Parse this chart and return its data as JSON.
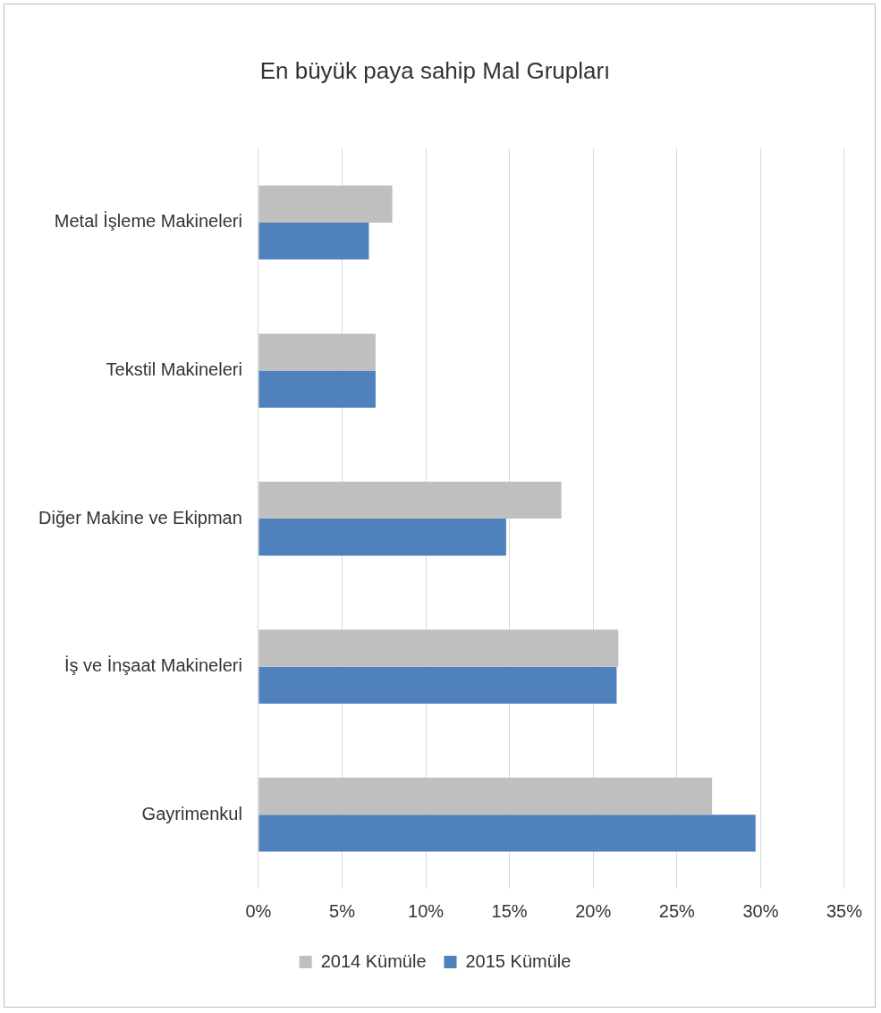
{
  "chart_data": {
    "type": "bar",
    "orientation": "horizontal",
    "title": "En büyük paya sahip Mal Grupları",
    "categories": [
      "Metal İşleme Makineleri",
      "Tekstil Makineleri",
      "Diğer Makine ve Ekipman",
      "İş ve İnşaat Makineleri",
      "Gayrimenkul"
    ],
    "series": [
      {
        "name": "2014 Kümüle",
        "color": "#bfbfbf",
        "values": [
          8.0,
          7.0,
          18.1,
          21.5,
          27.1
        ]
      },
      {
        "name": "2015 Kümüle",
        "color": "#4f81bd",
        "values": [
          6.6,
          7.0,
          14.8,
          21.4,
          29.7
        ]
      }
    ],
    "xlim": [
      0,
      35
    ],
    "xticks": [
      {
        "value": 0,
        "label": "0%"
      },
      {
        "value": 5,
        "label": "5%"
      },
      {
        "value": 10,
        "label": "10%"
      },
      {
        "value": 15,
        "label": "15%"
      },
      {
        "value": 20,
        "label": "20%"
      },
      {
        "value": 25,
        "label": "25%"
      },
      {
        "value": 30,
        "label": "30%"
      },
      {
        "value": 35,
        "label": "35%"
      }
    ],
    "grid": "x",
    "legend": "bottom"
  }
}
